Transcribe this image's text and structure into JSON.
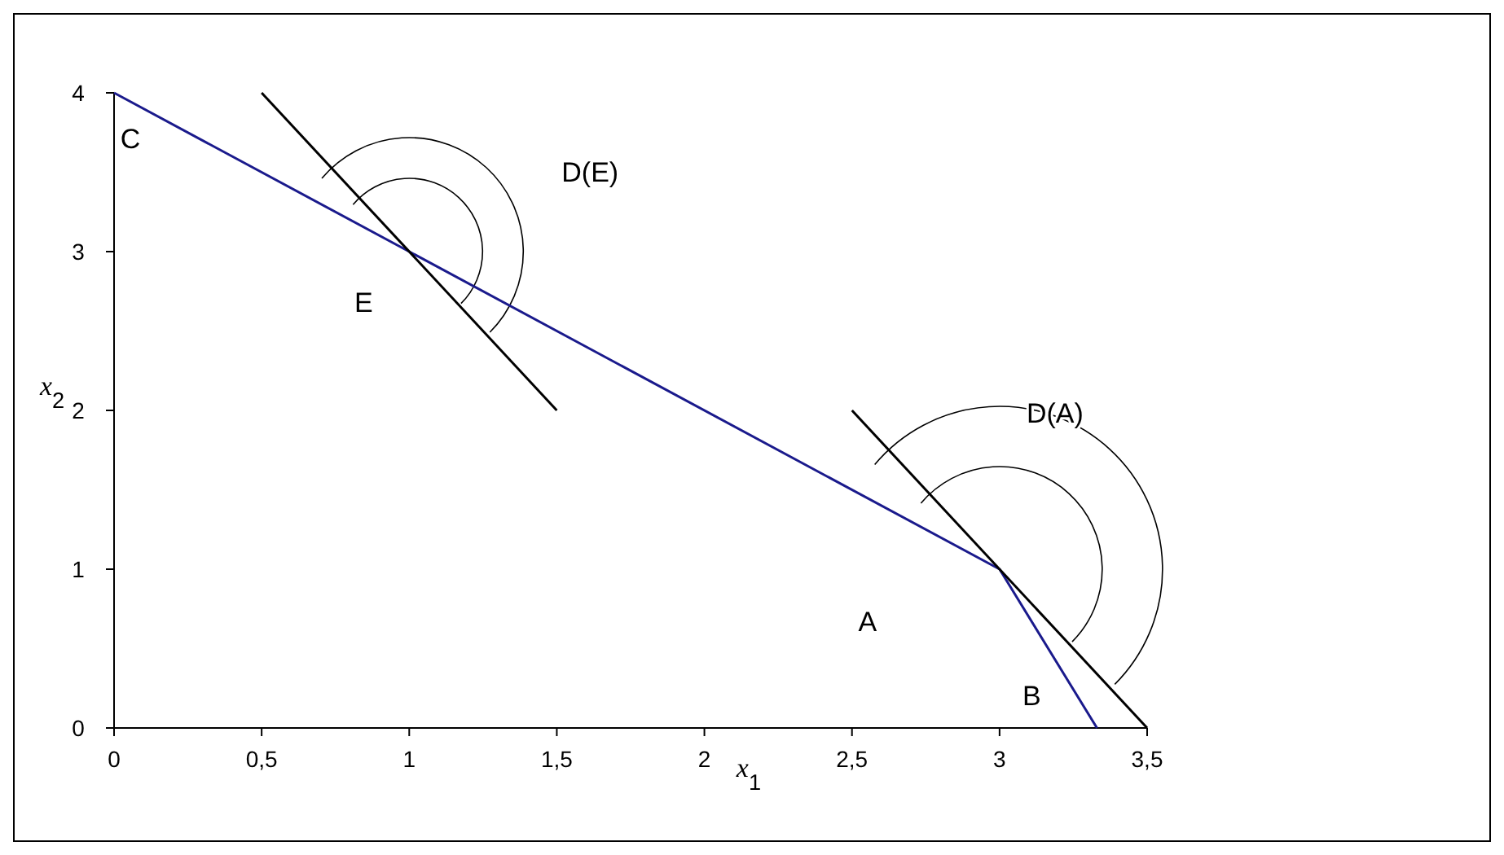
{
  "chart_data": {
    "type": "line",
    "xlabel": "x$_{1}$",
    "ylabel": "x$_{2}$",
    "xlim": [
      0,
      3.5
    ],
    "ylim": [
      0,
      4
    ],
    "xticks": [
      0,
      {
        "value": 0.5,
        "label": "0,5"
      },
      1,
      {
        "value": 1.5,
        "label": "1,5"
      },
      2,
      {
        "value": 2.5,
        "label": "2,5"
      },
      3,
      {
        "value": 3.5,
        "label": "3,5"
      }
    ],
    "yticks": [
      0,
      1,
      2,
      3,
      4
    ],
    "grid": false,
    "marker": "none",
    "line_style": "solid",
    "series": [
      {
        "color": "#1a1a8c",
        "x": [
          0,
          3,
          3.33
        ],
        "values": [
          4,
          1,
          0
        ]
      },
      {
        "color": "#000000",
        "x": [
          0.5,
          1.5
        ],
        "values": [
          4,
          2
        ]
      },
      {
        "color": "#000000",
        "x": [
          2.5,
          3.5
        ],
        "values": [
          2,
          0
        ]
      }
    ],
    "annotations": [
      {
        "text": "C",
        "x": 0,
        "y": 4
      },
      "D(E)",
      {
        "text": "E",
        "x": 1,
        "y": 3
      },
      "D(A)",
      "A",
      {
        "text": "B",
        "x": 3.33,
        "y": 0
      }
    ]
  }
}
